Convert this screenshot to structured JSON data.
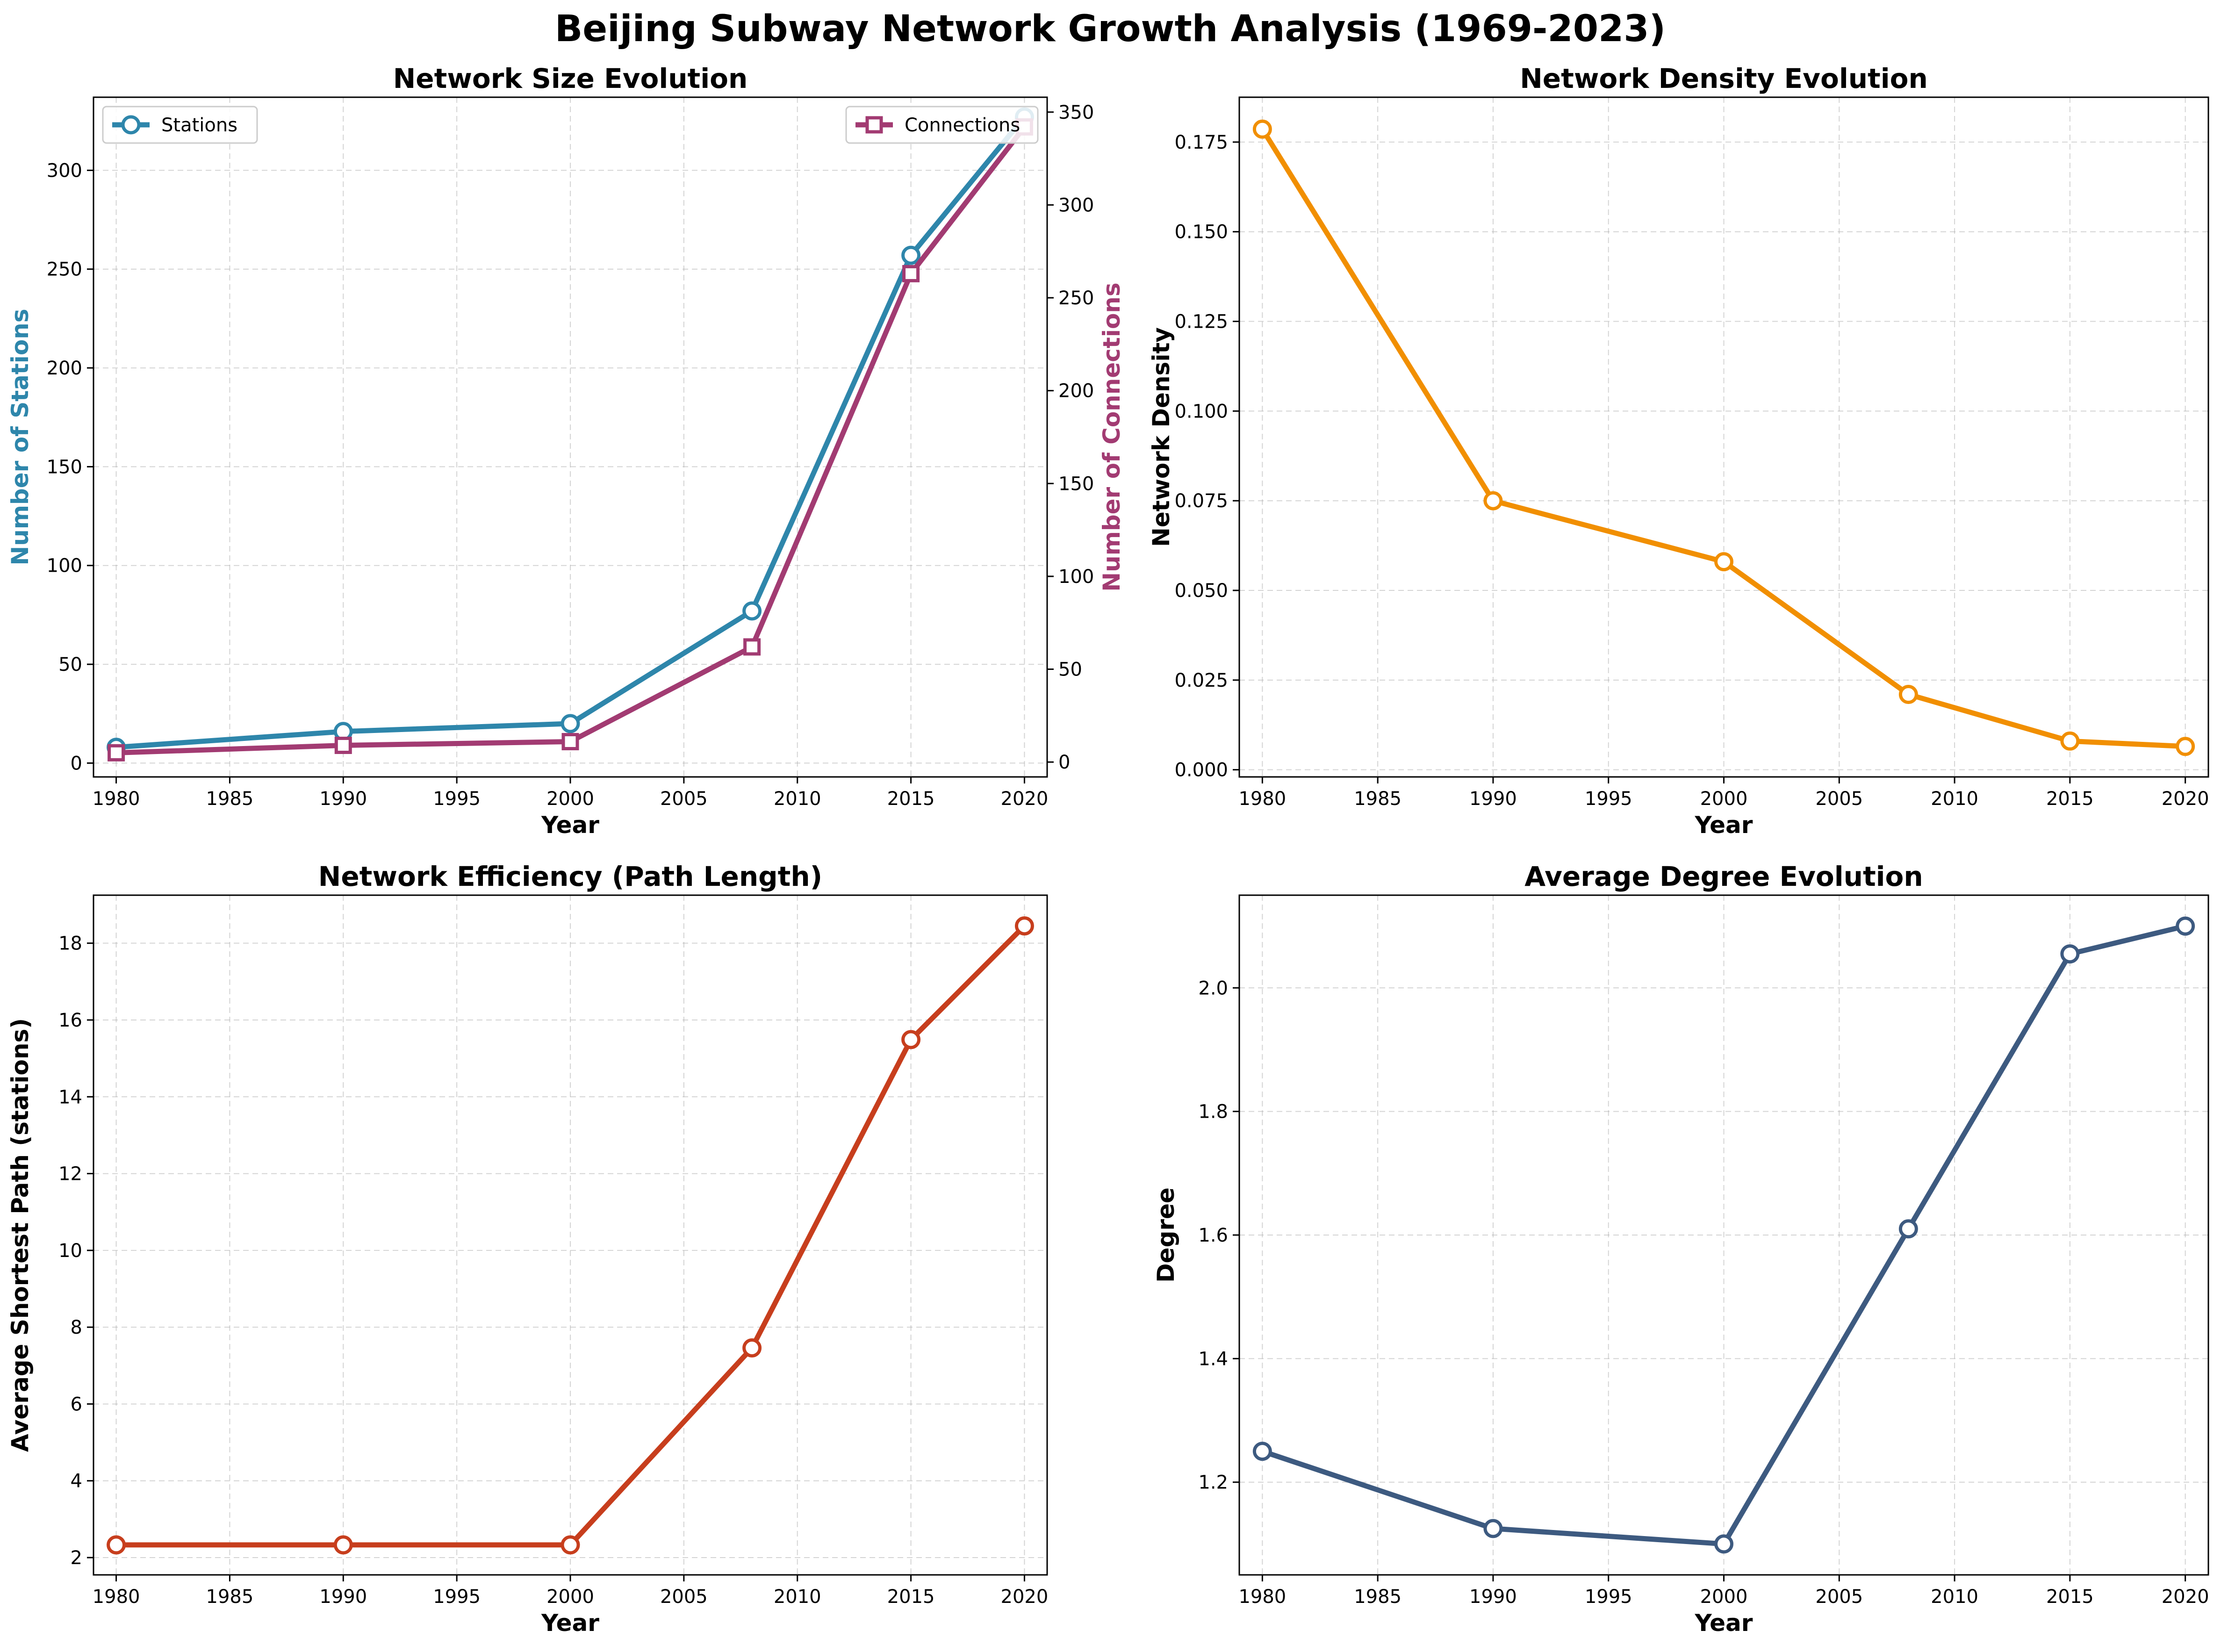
{
  "figure": {
    "title": "Beijing Subway Network Growth Analysis (1969-2023)"
  },
  "colors": {
    "stations": "#2e86ab",
    "connections": "#a23b72",
    "density": "#f18f01",
    "path": "#c73e1d",
    "degree": "#3d5a80"
  },
  "chart_data": [
    {
      "id": "size",
      "type": "line",
      "title": "Network Size Evolution",
      "xlabel": "Year",
      "ylabel": "Number of Stations",
      "ylabel_right": "Number of Connections",
      "x": [
        1980,
        1990,
        2000,
        2008,
        2015,
        2020
      ],
      "xlim": [
        1979,
        2021
      ],
      "xticks": [
        "1980",
        "1985",
        "1990",
        "1995",
        "2000",
        "2005",
        "2010",
        "2015",
        "2020"
      ],
      "ylim": [
        -7,
        337
      ],
      "yticks": [
        "0",
        "50",
        "100",
        "150",
        "200",
        "250",
        "300"
      ],
      "ylim_right": [
        -8,
        358
      ],
      "yticks_right": [
        "0",
        "50",
        "100",
        "150",
        "200",
        "250",
        "300",
        "350"
      ],
      "grid": true,
      "series": [
        {
          "name": "Stations",
          "axis": "left",
          "marker": "circle",
          "values": [
            8,
            16,
            20,
            77,
            257,
            327
          ],
          "legend": "upper left"
        },
        {
          "name": "Connections",
          "axis": "right",
          "marker": "square",
          "values": [
            5,
            9,
            11,
            62,
            263,
            342
          ],
          "legend": "upper right"
        }
      ]
    },
    {
      "id": "density",
      "type": "line",
      "title": "Network Density Evolution",
      "xlabel": "Year",
      "ylabel": "Network Density",
      "x": [
        1980,
        1990,
        2000,
        2008,
        2015,
        2020
      ],
      "xlim": [
        1979,
        2021
      ],
      "xticks": [
        "1980",
        "1985",
        "1990",
        "1995",
        "2000",
        "2005",
        "2010",
        "2015",
        "2020"
      ],
      "ylim": [
        -0.002,
        0.1875
      ],
      "yticks": [
        "0.000",
        "0.025",
        "0.050",
        "0.075",
        "0.100",
        "0.125",
        "0.150",
        "0.175"
      ],
      "grid": true,
      "series": [
        {
          "name": "",
          "marker": "circle",
          "values": [
            0.1786,
            0.075,
            0.058,
            0.021,
            0.008,
            0.0065
          ]
        }
      ]
    },
    {
      "id": "path",
      "type": "line",
      "title": "Network Efficiency (Path Length)",
      "xlabel": "Year",
      "ylabel": "Average Shortest Path (stations)",
      "x": [
        1980,
        1990,
        2000,
        2008,
        2015,
        2020
      ],
      "xlim": [
        1979,
        2021
      ],
      "xticks": [
        "1980",
        "1985",
        "1990",
        "1995",
        "2000",
        "2005",
        "2010",
        "2015",
        "2020"
      ],
      "ylim": [
        1.55,
        19.25
      ],
      "yticks": [
        "2",
        "4",
        "6",
        "8",
        "10",
        "12",
        "14",
        "16",
        "18"
      ],
      "grid": true,
      "series": [
        {
          "name": "",
          "marker": "circle",
          "values": [
            2.33,
            2.33,
            2.33,
            7.46,
            15.49,
            18.45
          ]
        }
      ]
    },
    {
      "id": "degree",
      "type": "line",
      "title": "Average Degree Evolution",
      "xlabel": "Year",
      "ylabel": "Degree",
      "x": [
        1980,
        1990,
        2000,
        2008,
        2015,
        2020
      ],
      "xlim": [
        1979,
        2021
      ],
      "xticks": [
        "1980",
        "1985",
        "1990",
        "1995",
        "2000",
        "2005",
        "2010",
        "2015",
        "2020"
      ],
      "ylim": [
        1.05,
        2.15
      ],
      "yticks": [
        "1.2",
        "1.4",
        "1.6",
        "1.8",
        "2.0"
      ],
      "grid": true,
      "series": [
        {
          "name": "",
          "marker": "circle",
          "values": [
            1.25,
            1.125,
            1.1,
            1.61,
            2.055,
            2.1
          ]
        }
      ]
    }
  ]
}
